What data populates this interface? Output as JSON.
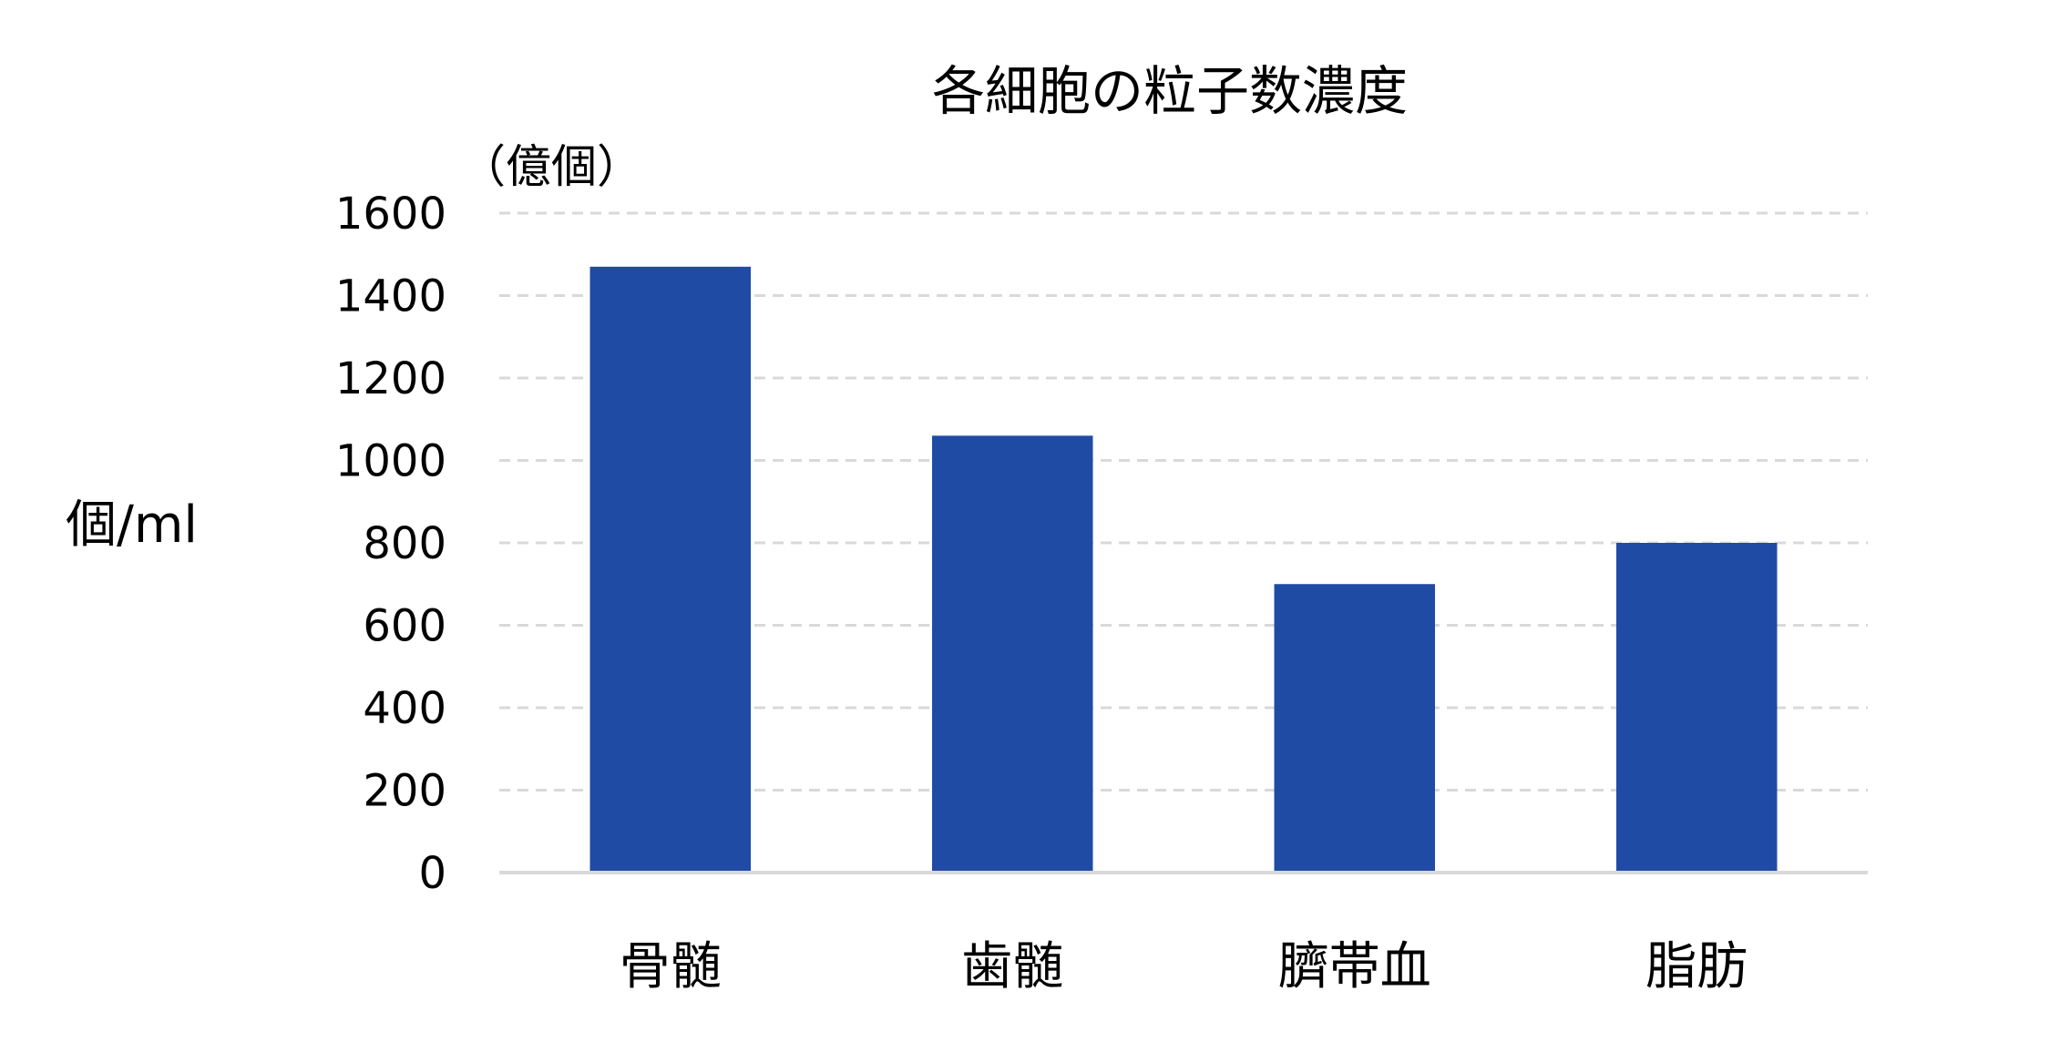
{
  "chart_data": {
    "type": "bar",
    "title": "各細胞の粒子数濃度",
    "unit_label": "（億個）",
    "ylabel": "個/ml",
    "xlabel": "",
    "categories": [
      "骨髄",
      "歯髄",
      "臍帯血",
      "脂肪"
    ],
    "values": [
      1470,
      1060,
      700,
      800
    ],
    "ylim": [
      0,
      1600
    ],
    "yticks": [
      0,
      200,
      400,
      600,
      800,
      1000,
      1200,
      1400,
      1600
    ],
    "grid": true,
    "grid_style": "dashed",
    "legend": "none",
    "colors": {
      "bar": "#1F4BA5",
      "grid": "#D9D9D9",
      "axis": "#D9D9D9",
      "text": "#000000"
    }
  }
}
